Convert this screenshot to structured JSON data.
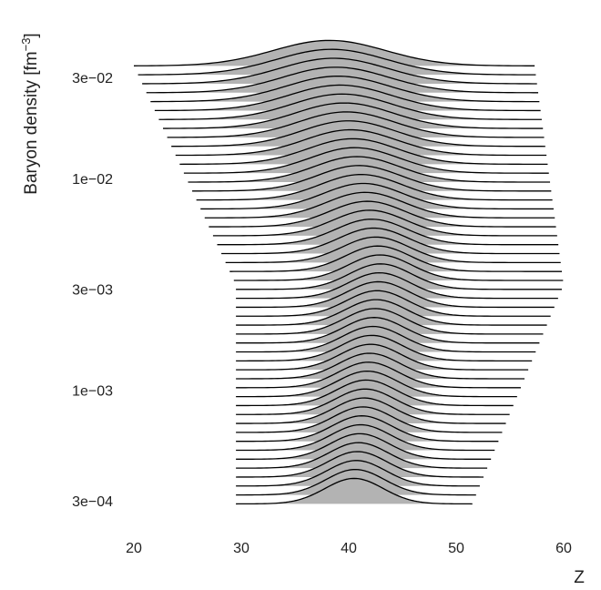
{
  "chart_data": {
    "type": "area",
    "subtype": "ridgeline",
    "title": "",
    "xlabel": "Z",
    "ylabel": {
      "main": "Baryon density [fm",
      "sup": "−3",
      "end": "]"
    },
    "x_scale": "linear",
    "y_scale": "log",
    "xlim": [
      20,
      60
    ],
    "ylim": [
      0.0003,
      0.04
    ],
    "x_ticks": [
      {
        "value": 20,
        "label": "20"
      },
      {
        "value": 30,
        "label": "30"
      },
      {
        "value": 40,
        "label": "40"
      },
      {
        "value": 50,
        "label": "50"
      },
      {
        "value": 60,
        "label": "60"
      }
    ],
    "y_ticks": [
      {
        "value": 0.0003,
        "label": "3e−04"
      },
      {
        "value": 0.001,
        "label": "1e−03"
      },
      {
        "value": 0.003,
        "label": "3e−03"
      },
      {
        "value": 0.01,
        "label": "1e−02"
      },
      {
        "value": 0.03,
        "label": "3e−02"
      }
    ],
    "ridge_count": 50,
    "density_range": [
      0.00029,
      0.034
    ],
    "z_min_endpoints": [
      29.5,
      29.5,
      20.0
    ],
    "z_max_endpoints": [
      51.5,
      60.0,
      57.3
    ],
    "peak_z_endpoints": [
      40.5,
      43.0,
      38.2
    ],
    "sigma_endpoints": [
      2.7,
      2.9,
      5.2
    ],
    "fill_color": "#b3b3b3",
    "line_color": "#000000",
    "grid": false,
    "legend": "none"
  }
}
